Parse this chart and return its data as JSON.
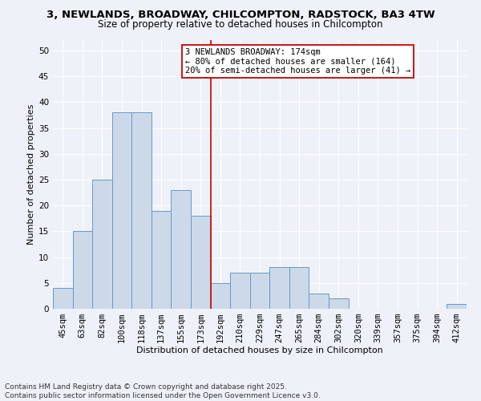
{
  "title": "3, NEWLANDS, BROADWAY, CHILCOMPTON, RADSTOCK, BA3 4TW",
  "subtitle": "Size of property relative to detached houses in Chilcompton",
  "xlabel": "Distribution of detached houses by size in Chilcompton",
  "ylabel": "Number of detached properties",
  "footer_line1": "Contains HM Land Registry data © Crown copyright and database right 2025.",
  "footer_line2": "Contains public sector information licensed under the Open Government Licence v3.0.",
  "categories": [
    "45sqm",
    "63sqm",
    "82sqm",
    "100sqm",
    "118sqm",
    "137sqm",
    "155sqm",
    "173sqm",
    "192sqm",
    "210sqm",
    "229sqm",
    "247sqm",
    "265sqm",
    "284sqm",
    "302sqm",
    "320sqm",
    "339sqm",
    "357sqm",
    "375sqm",
    "394sqm",
    "412sqm"
  ],
  "values": [
    4,
    15,
    25,
    38,
    38,
    19,
    23,
    18,
    5,
    7,
    7,
    8,
    8,
    3,
    2,
    0,
    0,
    0,
    0,
    0,
    1
  ],
  "bar_color": "#ccd9e8",
  "bar_edge_color": "#6699cc",
  "bar_edge_width": 0.7,
  "vline_x_index": 7,
  "vline_color": "#cc0000",
  "vline_linewidth": 1.2,
  "annotation_text": "3 NEWLANDS BROADWAY: 174sqm\n← 80% of detached houses are smaller (164)\n20% of semi-detached houses are larger (41) →",
  "annotation_box_color": "white",
  "annotation_box_edge": "#cc0000",
  "ylim": [
    0,
    52
  ],
  "yticks": [
    0,
    5,
    10,
    15,
    20,
    25,
    30,
    35,
    40,
    45,
    50
  ],
  "background_color": "#eef2f8",
  "grid_color": "white",
  "title_fontsize": 9.5,
  "subtitle_fontsize": 8.5,
  "axis_label_fontsize": 8,
  "tick_fontsize": 7.5,
  "annotation_fontsize": 7.5,
  "footer_fontsize": 6.5
}
